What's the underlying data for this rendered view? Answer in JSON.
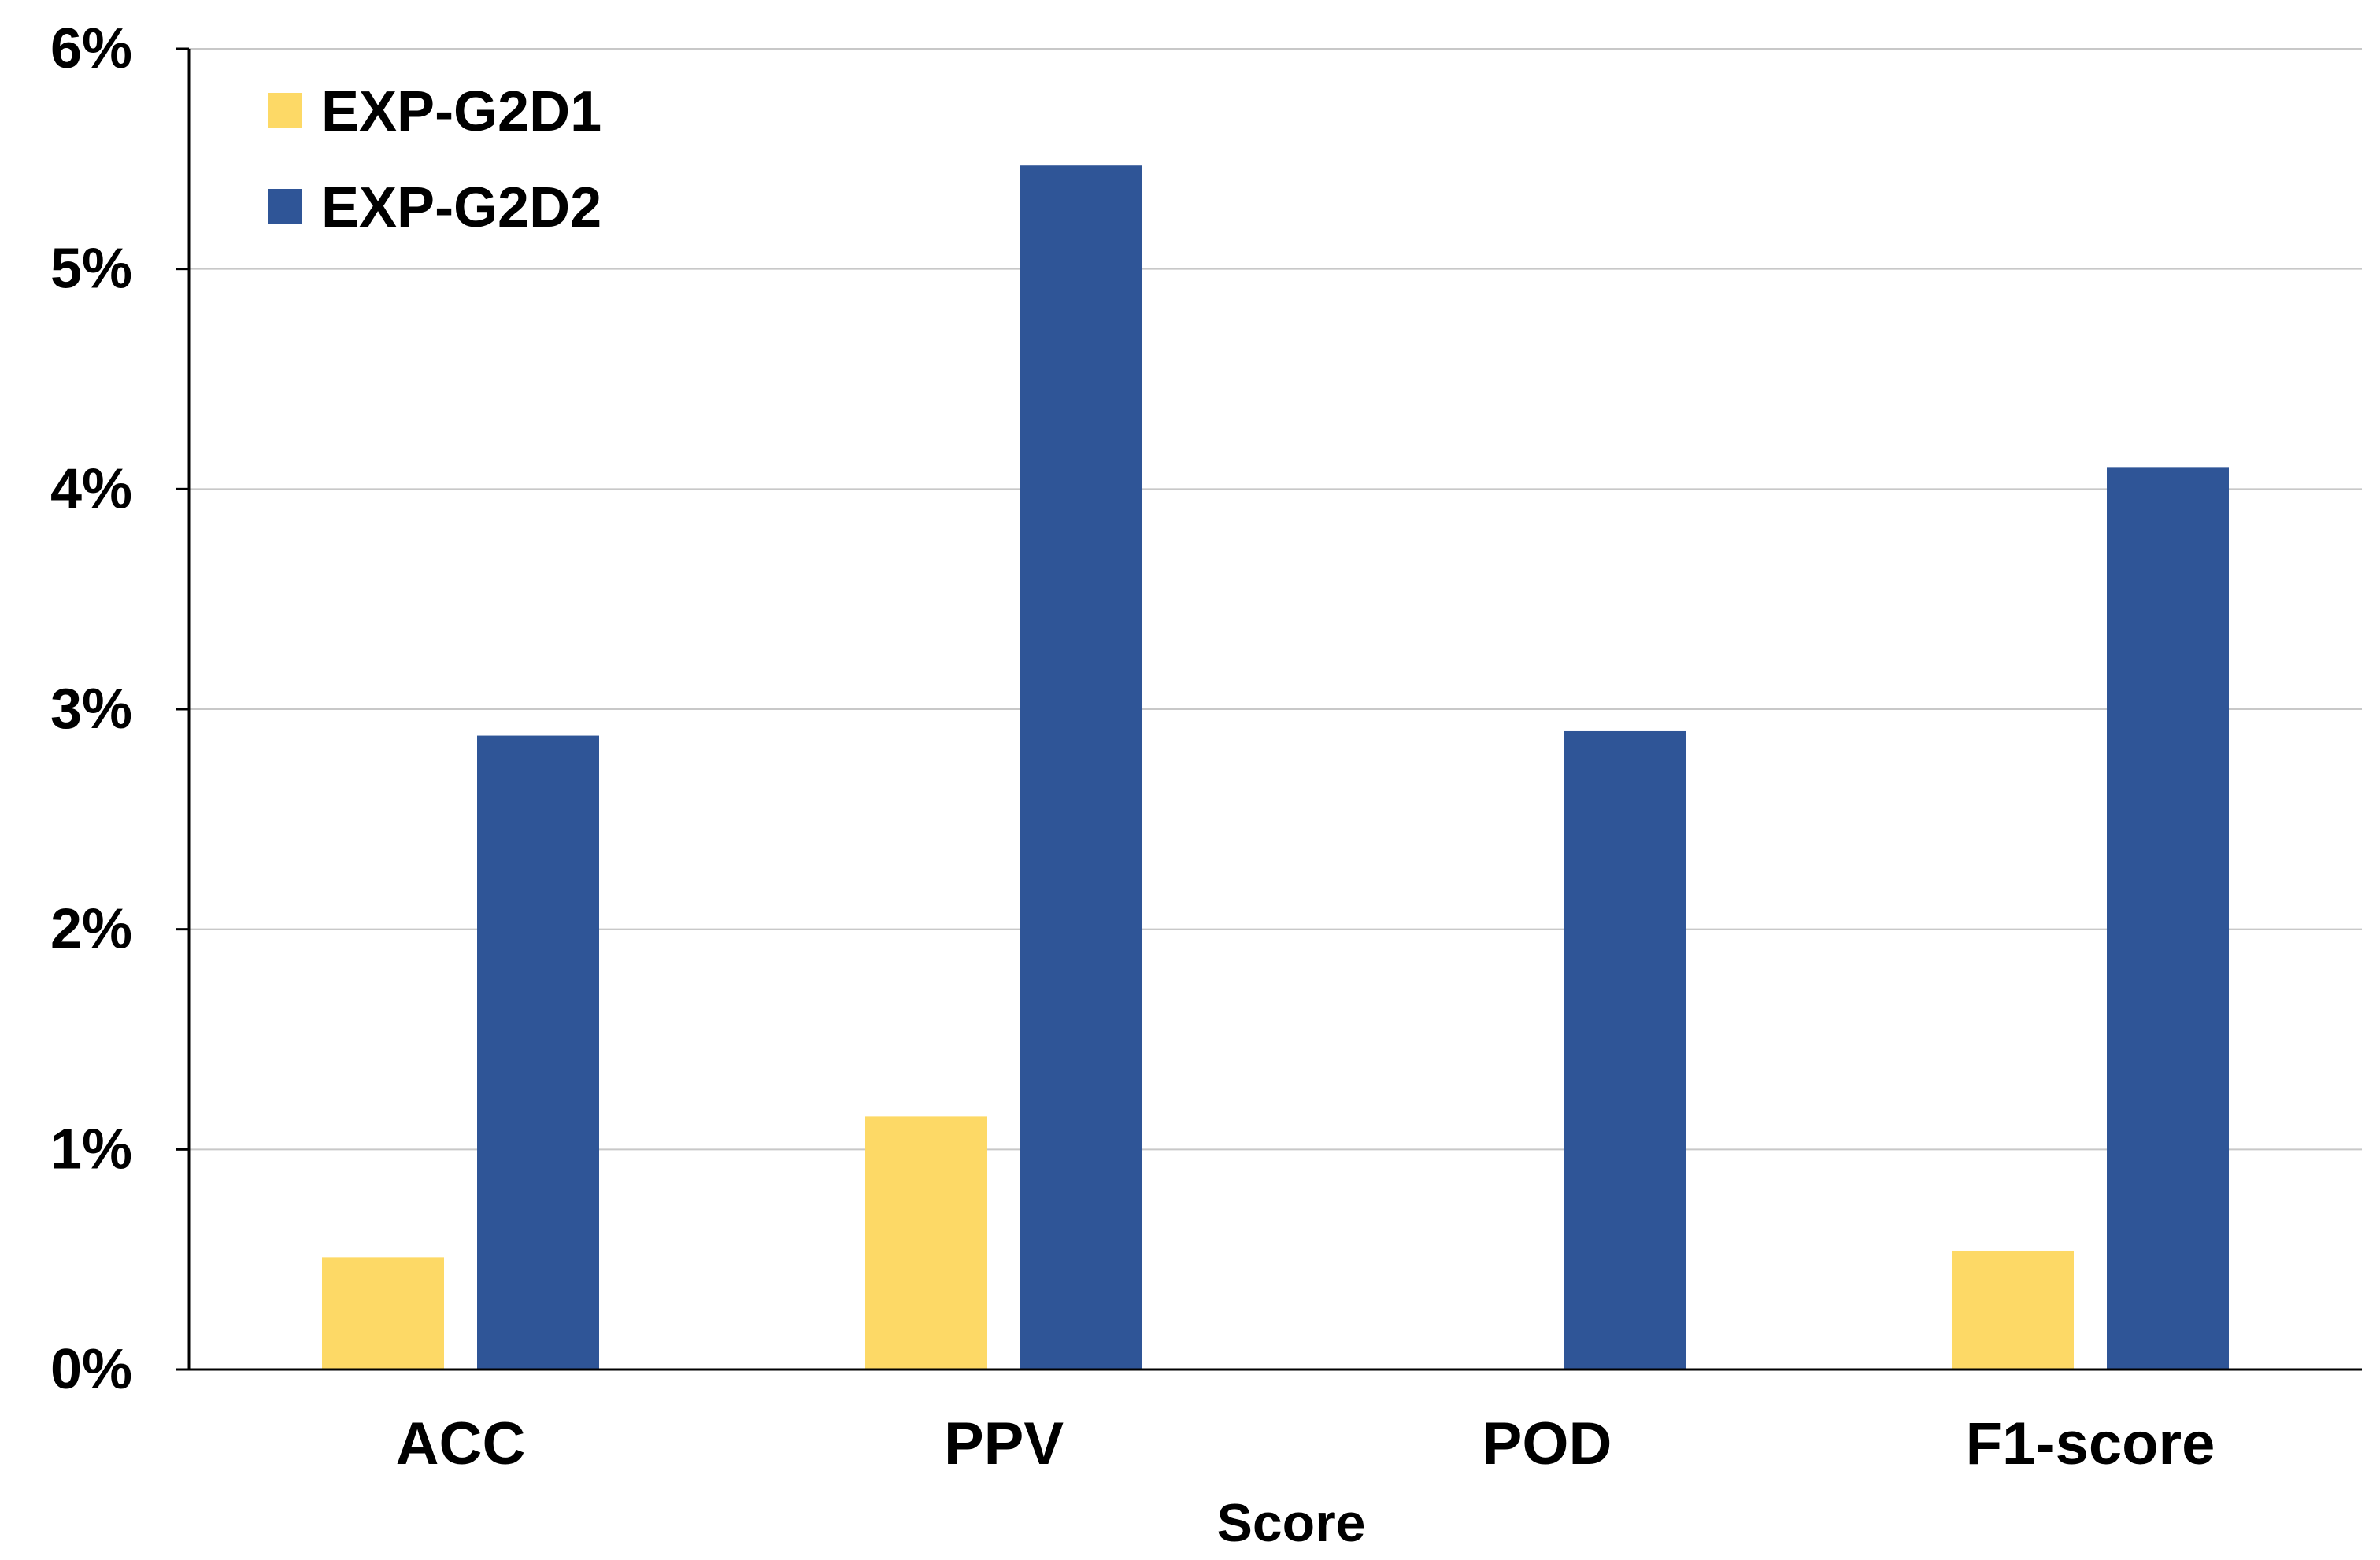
{
  "chart_data": {
    "type": "bar",
    "title": "",
    "xlabel": "Score",
    "ylabel": "",
    "categories": [
      "ACC",
      "PPV",
      "POD",
      "F1-score"
    ],
    "series": [
      {
        "name": "EXP-G2D1",
        "color": "#FDD966",
        "values": [
          0.51,
          1.15,
          0.0,
          0.54
        ]
      },
      {
        "name": "EXP-G2D2",
        "color": "#2F5597",
        "values": [
          2.88,
          5.47,
          2.9,
          4.1
        ]
      }
    ],
    "ylim": [
      0,
      6
    ],
    "yticks": [
      0,
      1,
      2,
      3,
      4,
      5,
      6
    ],
    "ytick_labels": [
      "0%",
      "1%",
      "2%",
      "3%",
      "4%",
      "5%",
      "6%"
    ],
    "grid": true,
    "legend_position": "top-left"
  }
}
